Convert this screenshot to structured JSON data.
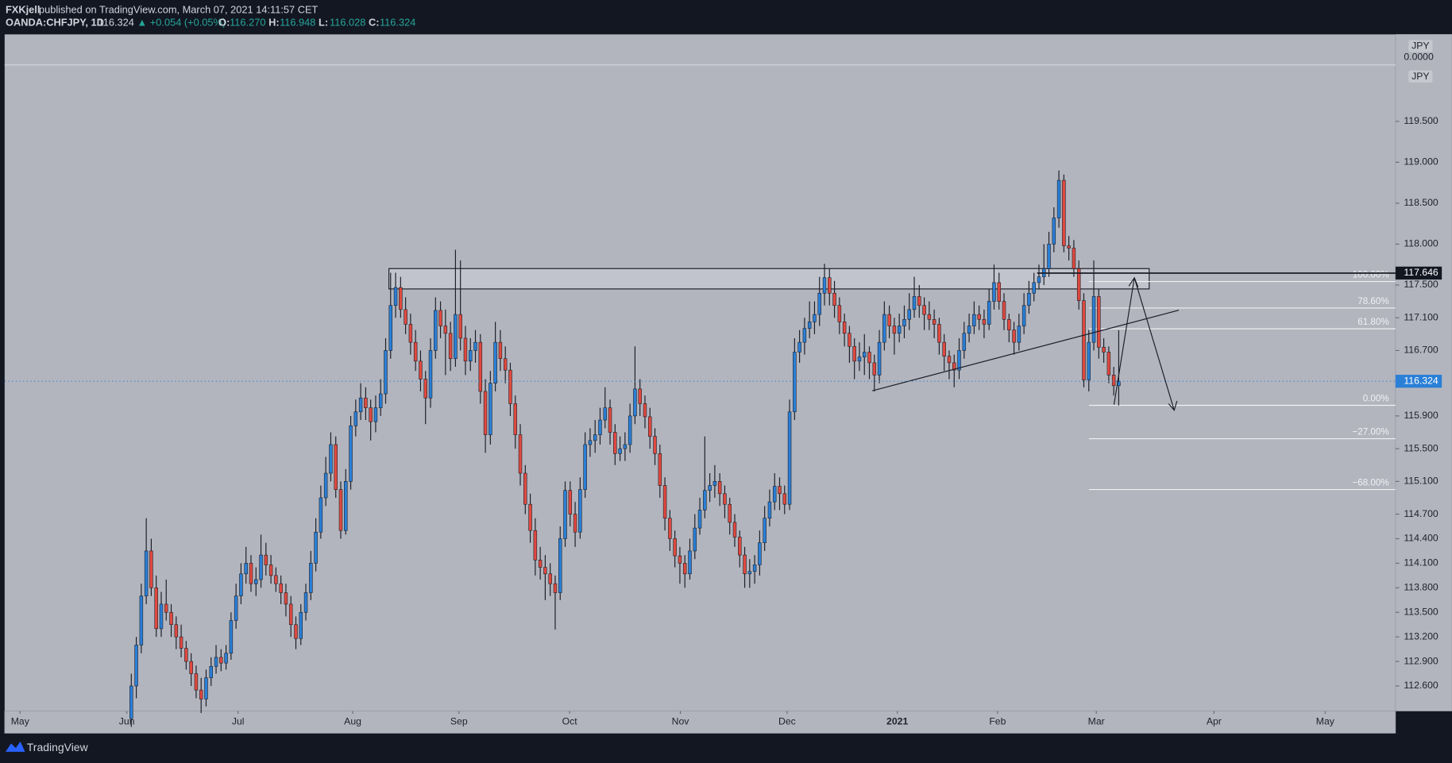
{
  "header": {
    "author": "FXKjell",
    "published": "published on TradingView.com, March 07, 2021 14:11:57 CET",
    "symbol": "OANDA:CHFJPY, 1D",
    "last": "116.324",
    "change": "▲ +0.054 (+0.05%)",
    "quote": [
      {
        "key": "O:",
        "value": "116.270"
      },
      {
        "key": "H:",
        "value": "116.948"
      },
      {
        "key": "L:",
        "value": "116.028"
      },
      {
        "key": "C:",
        "value": "116.324"
      }
    ]
  },
  "footer": {
    "brand": "TradingView"
  },
  "scale_labels": [
    "JPY",
    "0.0000",
    "JPY"
  ],
  "chart_data": {
    "type": "candlestick",
    "up_color": "#2a7fd6",
    "down_color": "#e0493f",
    "wick_color": "#1b1d27",
    "xlim": [
      -25.4,
      253.5
    ],
    "ylim": [
      112.294,
      120.563
    ],
    "xticks": [
      {
        "value": -22.3,
        "label": "May"
      },
      {
        "value": -0.9,
        "label": "Jun"
      },
      {
        "value": 21.4,
        "label": "Jul"
      },
      {
        "value": 44.4,
        "label": "Aug"
      },
      {
        "value": 65.7,
        "label": "Sep"
      },
      {
        "value": 87.9,
        "label": "Oct"
      },
      {
        "value": 110.1,
        "label": "Nov"
      },
      {
        "value": 131.5,
        "label": "Dec"
      },
      {
        "value": 153.6,
        "label": "2021"
      },
      {
        "value": 173.7,
        "label": "Feb"
      },
      {
        "value": 193.5,
        "label": "Mar"
      },
      {
        "value": 217.1,
        "label": "Apr"
      },
      {
        "value": 239.4,
        "label": "May"
      }
    ],
    "yticks": [
      {
        "value": 112.6,
        "label": "112.600"
      },
      {
        "value": 112.9,
        "label": "112.900"
      },
      {
        "value": 113.2,
        "label": "113.200"
      },
      {
        "value": 113.5,
        "label": "113.500"
      },
      {
        "value": 113.8,
        "label": "113.800"
      },
      {
        "value": 114.1,
        "label": "114.100"
      },
      {
        "value": 114.4,
        "label": "114.400"
      },
      {
        "value": 114.7,
        "label": "114.700"
      },
      {
        "value": 115.1,
        "label": "115.100"
      },
      {
        "value": 115.5,
        "label": "115.500"
      },
      {
        "value": 115.9,
        "label": "115.900"
      },
      {
        "value": 116.7,
        "label": "116.700"
      },
      {
        "value": 117.1,
        "label": "117.100"
      },
      {
        "value": 117.5,
        "label": "117.500"
      },
      {
        "value": 118,
        "label": "118.000"
      },
      {
        "value": 118.5,
        "label": "118.500"
      },
      {
        "value": 119,
        "label": "119.000"
      },
      {
        "value": 119.5,
        "label": "119.500"
      }
    ],
    "last_price": 116.324,
    "level": 117.646,
    "fib": {
      "high": 117.543,
      "low": 116.03,
      "levels": [
        {
          "value": 100,
          "label": "100.00%"
        },
        {
          "value": 78.6,
          "label": "78.60%"
        },
        {
          "value": 61.8,
          "label": "61.80%"
        },
        {
          "value": 0,
          "label": "0.00%"
        },
        {
          "value": -27,
          "label": "−27.00%"
        },
        {
          "value": -68,
          "label": "−68.00%"
        }
      ]
    },
    "ohlc": [
      [
        112.2,
        112.75,
        112.1,
        112.6
      ],
      [
        112.6,
        113.2,
        112.45,
        113.1
      ],
      [
        113.1,
        113.85,
        113.0,
        113.7
      ],
      [
        113.7,
        114.65,
        113.6,
        114.25
      ],
      [
        114.25,
        114.4,
        113.7,
        113.8
      ],
      [
        113.8,
        113.95,
        113.2,
        113.3
      ],
      [
        113.3,
        113.75,
        113.2,
        113.6
      ],
      [
        113.6,
        113.9,
        113.4,
        113.5
      ],
      [
        113.5,
        113.6,
        113.2,
        113.35
      ],
      [
        113.35,
        113.45,
        113.05,
        113.2
      ],
      [
        113.2,
        113.35,
        112.95,
        113.06
      ],
      [
        113.06,
        113.15,
        112.8,
        112.9
      ],
      [
        112.9,
        113.0,
        112.6,
        112.75
      ],
      [
        112.75,
        112.85,
        112.45,
        112.55
      ],
      [
        112.55,
        112.7,
        112.27,
        112.44
      ],
      [
        112.44,
        112.8,
        112.35,
        112.7
      ],
      [
        112.7,
        112.95,
        112.6,
        112.84
      ],
      [
        112.84,
        113.1,
        112.75,
        112.95
      ],
      [
        112.95,
        113.05,
        112.78,
        112.88
      ],
      [
        112.88,
        113.1,
        112.8,
        113.0
      ],
      [
        113.0,
        113.5,
        112.92,
        113.4
      ],
      [
        113.4,
        113.85,
        113.3,
        113.7
      ],
      [
        113.7,
        114.1,
        113.6,
        113.97
      ],
      [
        113.97,
        114.3,
        113.85,
        114.1
      ],
      [
        114.1,
        114.2,
        113.75,
        113.85
      ],
      [
        113.85,
        114.05,
        113.7,
        113.9
      ],
      [
        113.9,
        114.45,
        113.8,
        114.2
      ],
      [
        114.2,
        114.35,
        113.95,
        114.08
      ],
      [
        114.08,
        114.2,
        113.85,
        113.95
      ],
      [
        113.95,
        114.05,
        113.75,
        113.85
      ],
      [
        113.85,
        113.95,
        113.6,
        113.74
      ],
      [
        113.74,
        113.85,
        113.45,
        113.6
      ],
      [
        113.6,
        113.7,
        113.2,
        113.35
      ],
      [
        113.35,
        113.45,
        113.05,
        113.18
      ],
      [
        113.18,
        113.6,
        113.1,
        113.5
      ],
      [
        113.5,
        113.85,
        113.4,
        113.74
      ],
      [
        113.74,
        114.25,
        113.65,
        114.1
      ],
      [
        114.1,
        114.65,
        114.0,
        114.48
      ],
      [
        114.48,
        115.05,
        114.4,
        114.9
      ],
      [
        114.9,
        115.4,
        114.8,
        115.2
      ],
      [
        115.2,
        115.7,
        115.1,
        115.55
      ],
      [
        115.55,
        115.65,
        114.9,
        115.0
      ],
      [
        115.0,
        115.1,
        114.4,
        114.5
      ],
      [
        114.5,
        115.25,
        114.45,
        115.1
      ],
      [
        115.1,
        115.9,
        115.0,
        115.78
      ],
      [
        115.78,
        116.1,
        115.65,
        115.95
      ],
      [
        115.95,
        116.3,
        115.85,
        116.12
      ],
      [
        116.12,
        116.25,
        115.85,
        116.0
      ],
      [
        116.0,
        116.1,
        115.6,
        115.83
      ],
      [
        115.83,
        116.15,
        115.7,
        116.0
      ],
      [
        116.0,
        116.35,
        115.9,
        116.17
      ],
      [
        116.17,
        116.85,
        116.05,
        116.7
      ],
      [
        116.7,
        117.65,
        116.6,
        117.25
      ],
      [
        117.25,
        117.65,
        117.1,
        117.47
      ],
      [
        117.47,
        117.6,
        117.1,
        117.2
      ],
      [
        117.2,
        117.35,
        116.9,
        117.02
      ],
      [
        117.02,
        117.15,
        116.65,
        116.8
      ],
      [
        116.8,
        116.95,
        116.45,
        116.57
      ],
      [
        116.57,
        116.7,
        116.2,
        116.35
      ],
      [
        116.35,
        116.45,
        115.8,
        116.12
      ],
      [
        116.12,
        116.85,
        116.0,
        116.7
      ],
      [
        116.7,
        117.35,
        116.6,
        117.19
      ],
      [
        117.19,
        117.3,
        116.85,
        117.0
      ],
      [
        117.0,
        117.2,
        116.4,
        116.91
      ],
      [
        116.91,
        117.05,
        116.45,
        116.6
      ],
      [
        116.6,
        117.93,
        116.5,
        117.14
      ],
      [
        117.14,
        117.8,
        116.7,
        116.85
      ],
      [
        116.85,
        117.0,
        116.4,
        116.57
      ],
      [
        116.57,
        116.85,
        116.45,
        116.7
      ],
      [
        116.7,
        116.95,
        116.55,
        116.8
      ],
      [
        116.8,
        116.9,
        116.05,
        116.2
      ],
      [
        116.2,
        116.35,
        115.45,
        115.67
      ],
      [
        115.67,
        116.45,
        115.55,
        116.3
      ],
      [
        116.3,
        117.05,
        116.2,
        116.8
      ],
      [
        116.8,
        116.95,
        116.45,
        116.6
      ],
      [
        116.6,
        116.75,
        116.3,
        116.46
      ],
      [
        116.46,
        116.55,
        115.9,
        116.05
      ],
      [
        116.05,
        116.15,
        115.5,
        115.67
      ],
      [
        115.67,
        115.8,
        115.05,
        115.2
      ],
      [
        115.2,
        115.3,
        114.7,
        114.82
      ],
      [
        114.82,
        114.95,
        114.35,
        114.5
      ],
      [
        114.5,
        114.65,
        113.95,
        114.14
      ],
      [
        114.14,
        114.3,
        113.9,
        114.05
      ],
      [
        114.05,
        114.2,
        113.65,
        113.97
      ],
      [
        113.97,
        114.1,
        113.7,
        113.85
      ],
      [
        113.85,
        113.95,
        113.29,
        113.74
      ],
      [
        113.74,
        114.55,
        113.65,
        114.4
      ],
      [
        114.4,
        115.1,
        114.3,
        114.99
      ],
      [
        114.99,
        115.1,
        114.55,
        114.7
      ],
      [
        114.7,
        114.85,
        114.3,
        114.48
      ],
      [
        114.48,
        115.15,
        114.4,
        115.0
      ],
      [
        115.0,
        115.7,
        114.9,
        115.55
      ],
      [
        115.55,
        115.75,
        115.4,
        115.6
      ],
      [
        115.6,
        115.85,
        115.45,
        115.67
      ],
      [
        115.67,
        116.0,
        115.55,
        115.85
      ],
      [
        115.85,
        116.25,
        115.75,
        116.0
      ],
      [
        116.0,
        116.1,
        115.55,
        115.7
      ],
      [
        115.7,
        115.8,
        115.3,
        115.44
      ],
      [
        115.44,
        115.65,
        115.35,
        115.5
      ],
      [
        115.5,
        115.7,
        115.35,
        115.55
      ],
      [
        115.55,
        116.05,
        115.45,
        115.9
      ],
      [
        115.9,
        116.75,
        115.8,
        116.23
      ],
      [
        116.23,
        116.35,
        115.9,
        116.05
      ],
      [
        116.05,
        116.15,
        115.75,
        115.89
      ],
      [
        115.89,
        116.0,
        115.5,
        115.65
      ],
      [
        115.65,
        115.75,
        115.3,
        115.44
      ],
      [
        115.44,
        115.55,
        114.9,
        115.05
      ],
      [
        115.05,
        115.15,
        114.5,
        114.65
      ],
      [
        114.65,
        114.75,
        114.25,
        114.4
      ],
      [
        114.4,
        114.5,
        114.05,
        114.19
      ],
      [
        114.19,
        114.3,
        113.85,
        114.1
      ],
      [
        114.1,
        114.2,
        113.8,
        113.97
      ],
      [
        113.97,
        114.4,
        113.9,
        114.25
      ],
      [
        114.25,
        114.7,
        114.15,
        114.53
      ],
      [
        114.53,
        114.9,
        114.45,
        114.75
      ],
      [
        114.75,
        115.65,
        114.65,
        114.99
      ],
      [
        114.99,
        115.2,
        114.85,
        115.05
      ],
      [
        115.05,
        115.3,
        114.9,
        115.1
      ],
      [
        115.1,
        115.2,
        114.8,
        114.95
      ],
      [
        114.95,
        115.05,
        114.65,
        114.82
      ],
      [
        114.82,
        114.9,
        114.45,
        114.6
      ],
      [
        114.6,
        114.7,
        114.3,
        114.42
      ],
      [
        114.42,
        114.5,
        114.05,
        114.2
      ],
      [
        114.2,
        114.3,
        113.8,
        113.97
      ],
      [
        113.97,
        114.15,
        113.8,
        114.0
      ],
      [
        114.0,
        114.2,
        113.85,
        114.08
      ],
      [
        114.08,
        114.5,
        113.95,
        114.35
      ],
      [
        114.35,
        114.8,
        114.25,
        114.65
      ],
      [
        114.65,
        115.0,
        114.55,
        114.85
      ],
      [
        114.85,
        115.2,
        114.75,
        115.04
      ],
      [
        115.04,
        115.15,
        114.75,
        114.95
      ],
      [
        114.95,
        115.05,
        114.7,
        114.82
      ],
      [
        114.82,
        116.1,
        114.75,
        115.95
      ],
      [
        115.95,
        116.85,
        115.85,
        116.68
      ],
      [
        116.68,
        116.95,
        116.55,
        116.8
      ],
      [
        116.8,
        117.1,
        116.65,
        116.97
      ],
      [
        116.97,
        117.3,
        116.85,
        117.05
      ],
      [
        117.05,
        117.3,
        116.9,
        117.14
      ],
      [
        117.14,
        117.6,
        117.0,
        117.4
      ],
      [
        117.4,
        117.76,
        117.25,
        117.59
      ],
      [
        117.59,
        117.7,
        117.25,
        117.4
      ],
      [
        117.4,
        117.55,
        117.1,
        117.25
      ],
      [
        117.25,
        117.35,
        116.9,
        117.05
      ],
      [
        117.05,
        117.15,
        116.75,
        116.91
      ],
      [
        116.91,
        117.0,
        116.55,
        116.75
      ],
      [
        116.75,
        116.85,
        116.35,
        116.57
      ],
      [
        116.57,
        116.8,
        116.45,
        116.62
      ],
      [
        116.62,
        116.9,
        116.4,
        116.68
      ],
      [
        116.68,
        116.75,
        116.35,
        116.55
      ],
      [
        116.55,
        116.65,
        116.2,
        116.4
      ],
      [
        116.4,
        116.95,
        116.3,
        116.8
      ],
      [
        116.8,
        117.3,
        116.7,
        117.14
      ],
      [
        117.14,
        117.25,
        116.85,
        117.0
      ],
      [
        117.0,
        117.1,
        116.65,
        116.91
      ],
      [
        116.91,
        117.15,
        116.8,
        117.0
      ],
      [
        117.0,
        117.25,
        116.85,
        117.08
      ],
      [
        117.08,
        117.4,
        116.95,
        117.2
      ],
      [
        117.2,
        117.6,
        117.1,
        117.36
      ],
      [
        117.36,
        117.5,
        117.1,
        117.25
      ],
      [
        117.25,
        117.35,
        116.95,
        117.14
      ],
      [
        117.14,
        117.3,
        116.95,
        117.08
      ],
      [
        117.08,
        117.2,
        116.85,
        117.02
      ],
      [
        117.02,
        117.1,
        116.65,
        116.8
      ],
      [
        116.8,
        116.9,
        116.45,
        116.63
      ],
      [
        116.63,
        116.7,
        116.35,
        116.55
      ],
      [
        116.55,
        116.65,
        116.25,
        116.46
      ],
      [
        116.46,
        116.85,
        116.35,
        116.7
      ],
      [
        116.7,
        117.05,
        116.6,
        116.91
      ],
      [
        116.91,
        117.15,
        116.8,
        117.0
      ],
      [
        117.0,
        117.3,
        116.9,
        117.14
      ],
      [
        117.14,
        117.25,
        116.95,
        117.08
      ],
      [
        117.08,
        117.2,
        116.85,
        117.02
      ],
      [
        117.02,
        117.45,
        116.95,
        117.3
      ],
      [
        117.3,
        117.75,
        117.2,
        117.53
      ],
      [
        117.53,
        117.65,
        117.2,
        117.3
      ],
      [
        117.3,
        117.4,
        116.95,
        117.08
      ],
      [
        117.08,
        117.15,
        116.8,
        116.95
      ],
      [
        116.95,
        117.05,
        116.65,
        116.8
      ],
      [
        116.8,
        117.15,
        116.7,
        117.0
      ],
      [
        117.0,
        117.4,
        116.9,
        117.25
      ],
      [
        117.25,
        117.55,
        117.15,
        117.4
      ],
      [
        117.4,
        117.65,
        117.3,
        117.53
      ],
      [
        117.53,
        117.75,
        117.45,
        117.6
      ],
      [
        117.6,
        118.0,
        117.5,
        117.7
      ],
      [
        117.7,
        118.15,
        117.6,
        118.0
      ],
      [
        118.0,
        118.45,
        117.9,
        118.32
      ],
      [
        118.32,
        118.9,
        118.2,
        118.78
      ],
      [
        118.78,
        118.85,
        117.9,
        117.98
      ],
      [
        117.98,
        118.1,
        117.8,
        117.95
      ],
      [
        117.95,
        118.05,
        117.6,
        117.7
      ],
      [
        117.7,
        117.8,
        117.2,
        117.31
      ],
      [
        117.31,
        117.4,
        116.25,
        116.34
      ],
      [
        116.34,
        116.95,
        116.2,
        116.8
      ],
      [
        116.8,
        117.8,
        116.7,
        117.36
      ],
      [
        117.36,
        117.45,
        116.6,
        116.74
      ],
      [
        116.74,
        116.85,
        116.55,
        116.68
      ],
      [
        116.68,
        116.75,
        116.3,
        116.4
      ],
      [
        116.4,
        116.5,
        116.15,
        116.27
      ],
      [
        116.27,
        116.948,
        116.028,
        116.324
      ]
    ]
  }
}
